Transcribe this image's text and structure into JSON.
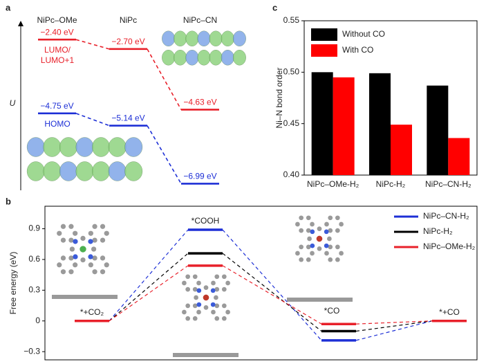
{
  "chart_data": [
    {
      "type": "energy-level",
      "title": "a",
      "ylabel": "U",
      "categories": [
        "NiPc–OMe",
        "NiPc",
        "NiPc–CN"
      ],
      "ylim": [
        -7.2,
        -1.8
      ],
      "series": [
        {
          "name": "LUMO/ LUMO+1",
          "color": "#e8202a",
          "values": [
            -2.4,
            -2.7,
            -4.63
          ],
          "value_labels": [
            "−2.40 eV",
            "−2.70 eV",
            "−4.63 eV"
          ]
        },
        {
          "name": "HOMO",
          "color": "#1d2fd6",
          "values": [
            -4.75,
            -5.14,
            -6.99
          ],
          "value_labels": [
            "−4.75 eV",
            "−5.14 eV",
            "−6.99 eV"
          ]
        }
      ]
    },
    {
      "type": "free-energy",
      "title": "b",
      "ylabel": "Free energy (eV)",
      "categories": [
        "*+CO₂",
        "*COOH",
        "*CO",
        "*+CO"
      ],
      "ylim": [
        -0.38,
        1.12
      ],
      "yticks": [
        {
          "value": -0.3,
          "label": "−0.3"
        },
        0,
        0.3,
        0.6,
        0.9
      ],
      "legend": "upper right",
      "series": [
        {
          "name": "NiPc–CN-H₂",
          "color": "#1d2fd6",
          "values": [
            0,
            0.89,
            -0.19,
            0
          ]
        },
        {
          "name": "NiPc-H₂",
          "color": "#000000",
          "values": [
            0,
            0.66,
            -0.1,
            0
          ]
        },
        {
          "name": "NiPc–OMe-H₂",
          "color": "#e8202a",
          "values": [
            0,
            0.54,
            -0.03,
            0
          ]
        }
      ]
    },
    {
      "type": "bar",
      "title": "c",
      "ylabel": "Ni–N bond order",
      "categories": [
        "NiPc–OMe-H₂",
        "NiPc-H₂",
        "NiPc–CN-H₂"
      ],
      "ylim": [
        0.4,
        0.55
      ],
      "yticks": [
        {
          "value": 0.4,
          "label": "0.40"
        },
        0.45,
        {
          "value": 0.5,
          "label": "0.50"
        },
        0.55
      ],
      "legend": "upper left",
      "series": [
        {
          "name": "Without CO",
          "color": "#000000",
          "values": [
            0.5,
            0.499,
            0.487
          ]
        },
        {
          "name": "With CO",
          "color": "#ff0000",
          "values": [
            0.495,
            0.449,
            0.436
          ]
        }
      ]
    }
  ]
}
